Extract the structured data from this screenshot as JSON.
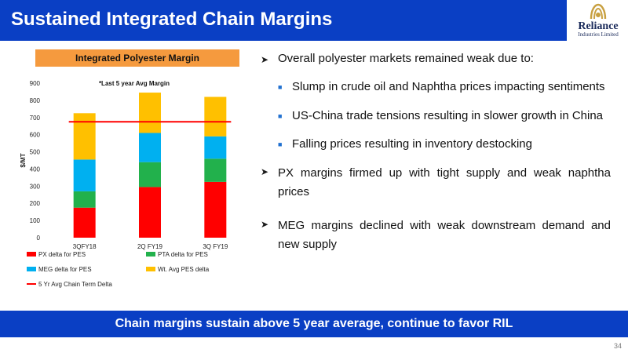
{
  "header": {
    "title": "Sustained Integrated Chain Margins"
  },
  "logo": {
    "name": "Reliance",
    "subtitle": "Industries Limited",
    "icon": "reliance-logo-icon"
  },
  "chart_data": {
    "type": "bar",
    "stacked": true,
    "title": "Integrated Polyester Margin",
    "annotation": "*Last 5 year Avg Margin",
    "ylabel": "$/MT",
    "xlabel": "",
    "ylim": [
      0,
      900
    ],
    "yticks": [
      0,
      100,
      200,
      300,
      400,
      500,
      600,
      700,
      800,
      900
    ],
    "grid": false,
    "legend_position": "bottom",
    "categories": [
      "3QFY18",
      "2Q FY19",
      "3Q FY19"
    ],
    "series": [
      {
        "name": "PX delta for PES",
        "color": "#ff0000",
        "values": [
          175,
          295,
          325
        ]
      },
      {
        "name": "PTA delta for PES",
        "color": "#22b14c",
        "values": [
          95,
          145,
          135
        ]
      },
      {
        "name": "MEG delta for PES",
        "color": "#00b0f0",
        "values": [
          185,
          170,
          130
        ]
      },
      {
        "name": "Wt. Avg PES delta",
        "color": "#ffc000",
        "values": [
          270,
          235,
          230
        ]
      }
    ],
    "line": {
      "name": "5 Yr Avg Chain Term Delta",
      "color": "#ff0000",
      "value": 675
    }
  },
  "bullets": [
    {
      "text": "Overall polyester markets remained weak due to:",
      "sub": [
        "Slump in crude oil and Naphtha prices impacting sentiments",
        "US-China trade tensions resulting in slower growth in China",
        "Falling prices resulting in inventory destocking"
      ]
    },
    {
      "text": "PX margins firmed up with tight supply and weak naphtha prices",
      "sub": []
    },
    {
      "text": "MEG margins declined with weak downstream demand and new supply",
      "sub": []
    }
  ],
  "banner": {
    "text": "Chain margins sustain above 5 year average, continue to favor RIL"
  },
  "page_number": "34"
}
